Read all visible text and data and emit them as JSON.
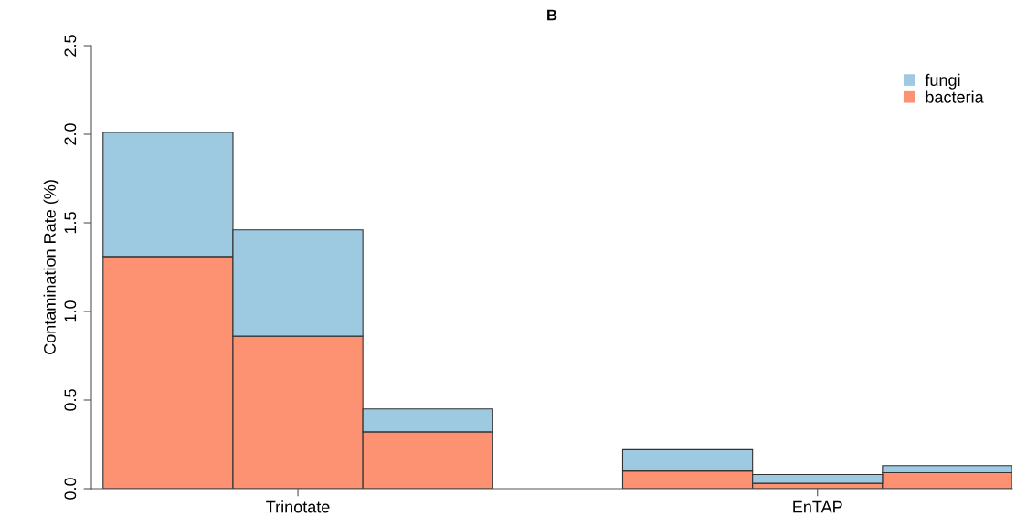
{
  "chart_data": {
    "type": "bar",
    "title": "B",
    "ylabel": "Contamination Rate (%)",
    "categories": [
      null,
      "Trinotate",
      null,
      null,
      null,
      "EnTAP",
      null
    ],
    "stacked": true,
    "series": [
      {
        "name": "bacteria",
        "color": "#fc9272",
        "values": [
          1.31,
          0.86,
          0.32,
          null,
          0.1,
          0.03,
          0.09
        ]
      },
      {
        "name": "fungi",
        "color": "#9ecae1",
        "values": [
          0.7,
          0.6,
          0.13,
          null,
          0.12,
          0.05,
          0.04
        ]
      }
    ],
    "ylim": [
      0,
      2.5
    ],
    "yticks": [
      {
        "value": 0,
        "label": "0.0"
      },
      0.5,
      {
        "value": 1,
        "label": "1.0"
      },
      1.5,
      {
        "value": 2,
        "label": "2.0"
      },
      2.5
    ],
    "legend": "top right",
    "grid": false
  }
}
